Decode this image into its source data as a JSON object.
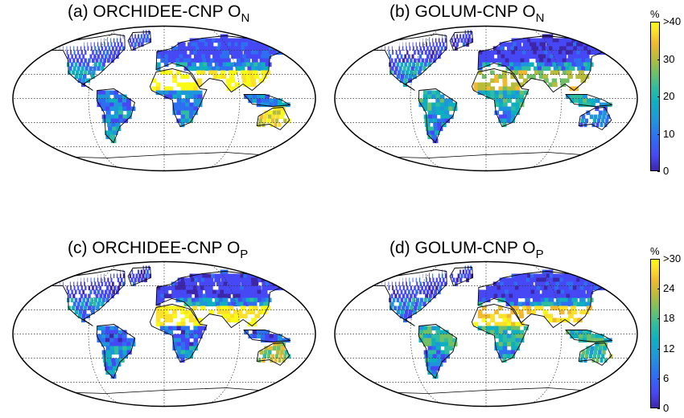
{
  "panels": [
    {
      "label": "(a) ORCHIDEE-CNP O",
      "sub": "N"
    },
    {
      "label": "(b) GOLUM-CNP O",
      "sub": "N"
    },
    {
      "label": "(c) ORCHIDEE-CNP O",
      "sub": "P"
    },
    {
      "label": "(d) GOLUM-CNP O",
      "sub": "P"
    }
  ],
  "colorbars": [
    {
      "unit": "%",
      "ticks": [
        "0",
        "10",
        "20",
        "30",
        ">40"
      ]
    },
    {
      "unit": "%",
      "ticks": [
        "0",
        "6",
        "12",
        "18",
        "24",
        ">30"
      ]
    }
  ],
  "colormap": [
    "#3e26a8",
    "#4748f5",
    "#2e6ff2",
    "#1f96db",
    "#0eb0c0",
    "#2ebd9f",
    "#71c068",
    "#b8bc3b",
    "#efba30",
    "#fbe12a",
    "#f9fb15"
  ]
}
